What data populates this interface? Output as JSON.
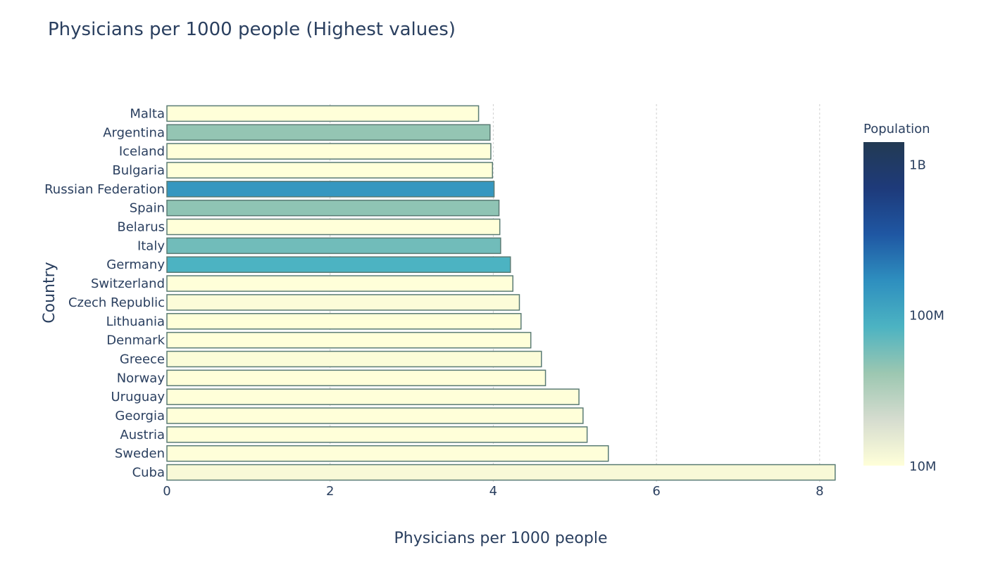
{
  "chart_data": {
    "type": "bar",
    "orientation": "horizontal",
    "title": "Physicians per 1000 people (Highest values)",
    "xlabel": "Physicians per 1000 people",
    "ylabel": "Country",
    "xlim": [
      0,
      8.2
    ],
    "xticks": [
      0,
      2,
      4,
      6,
      8
    ],
    "xtick_labels": [
      "0",
      "2",
      "4",
      "6",
      "8"
    ],
    "grid": "vertical",
    "categories": [
      "Malta",
      "Argentina",
      "Iceland",
      "Bulgaria",
      "Russian Federation",
      "Spain",
      "Belarus",
      "Italy",
      "Germany",
      "Switzerland",
      "Czech Republic",
      "Lithuania",
      "Denmark",
      "Greece",
      "Norway",
      "Uruguay",
      "Georgia",
      "Austria",
      "Sweden",
      "Cuba"
    ],
    "values": [
      3.82,
      3.96,
      3.97,
      3.99,
      4.01,
      4.07,
      4.08,
      4.09,
      4.21,
      4.24,
      4.32,
      4.34,
      4.46,
      4.59,
      4.64,
      5.05,
      5.1,
      5.15,
      5.41,
      8.19
    ],
    "population": [
      480000,
      44000000,
      350000,
      7000000,
      144000000,
      46000000,
      9500000,
      60000000,
      83000000,
      8500000,
      10600000,
      2800000,
      5800000,
      10700000,
      5300000,
      3500000,
      3700000,
      8900000,
      10200000,
      11300000
    ],
    "colorbar": {
      "title": "Population",
      "scale": "log",
      "range": [
        10000000,
        1400000000
      ],
      "ticks": [
        10000000,
        100000000,
        1000000000
      ],
      "tick_labels": [
        "10M",
        "100M",
        "1B"
      ],
      "colors": [
        "#ffffd9",
        "#d5dccf",
        "#9cc7b1",
        "#4cb3c2",
        "#2e8fbf",
        "#1f57a3",
        "#1e3a7a",
        "#223a53"
      ]
    }
  }
}
